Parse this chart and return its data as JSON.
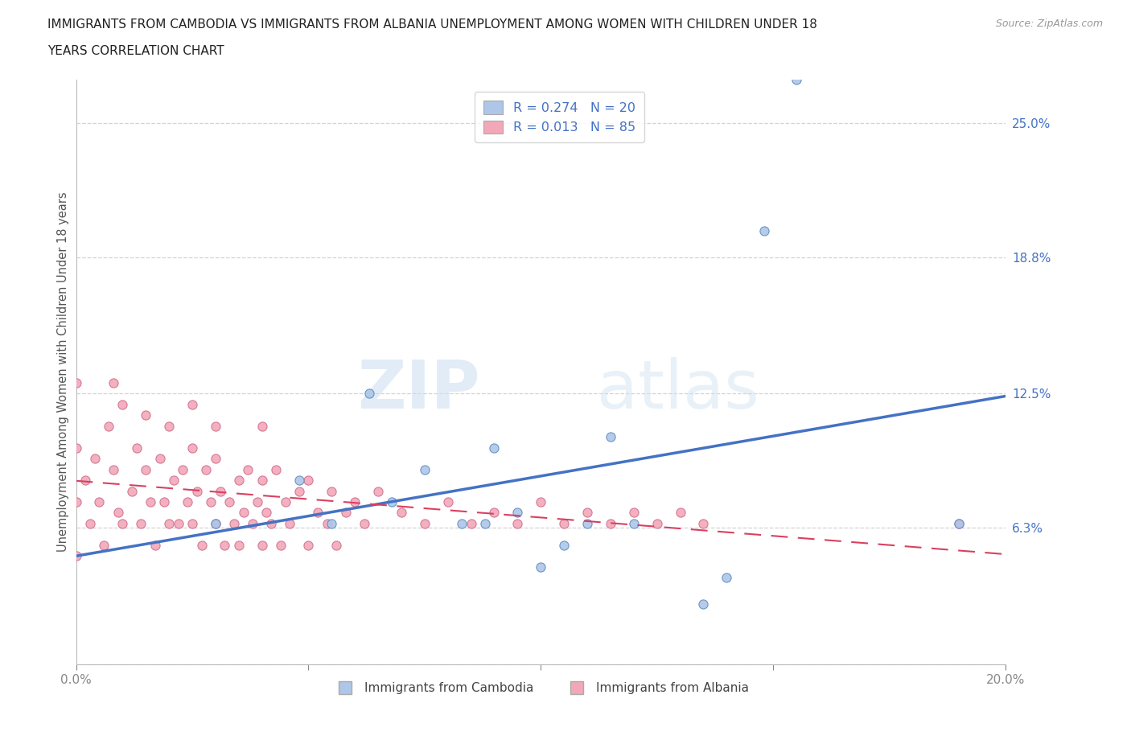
{
  "title_line1": "IMMIGRANTS FROM CAMBODIA VS IMMIGRANTS FROM ALBANIA UNEMPLOYMENT AMONG WOMEN WITH CHILDREN UNDER 18",
  "title_line2": "YEARS CORRELATION CHART",
  "source_text": "Source: ZipAtlas.com",
  "ylabel": "Unemployment Among Women with Children Under 18 years",
  "xlim": [
    0.0,
    0.2
  ],
  "ylim": [
    0.0,
    0.27
  ],
  "yticks": [
    0.0,
    0.063,
    0.125,
    0.188,
    0.25
  ],
  "ytick_labels": [
    "",
    "6.3%",
    "12.5%",
    "18.8%",
    "25.0%"
  ],
  "xticks": [
    0.0,
    0.05,
    0.1,
    0.15,
    0.2
  ],
  "xtick_labels": [
    "0.0%",
    "",
    "",
    "",
    "20.0%"
  ],
  "watermark_zip": "ZIP",
  "watermark_atlas": "atlas",
  "legend_r1": "R = 0.274",
  "legend_n1": "N = 20",
  "legend_r2": "R = 0.013",
  "legend_n2": "N = 85",
  "color_cambodia_fill": "#aec6e8",
  "color_cambodia_edge": "#5b8ec4",
  "color_albania_fill": "#f2a8b8",
  "color_albania_edge": "#d07090",
  "color_trendline_cambodia": "#4472c4",
  "color_trendline_albania": "#d94060",
  "background_color": "#ffffff",
  "grid_color": "#c8c8c8",
  "cambodia_x": [
    0.03,
    0.048,
    0.055,
    0.063,
    0.068,
    0.075,
    0.083,
    0.088,
    0.09,
    0.095,
    0.1,
    0.105,
    0.11,
    0.115,
    0.12,
    0.135,
    0.14,
    0.148,
    0.155,
    0.19
  ],
  "cambodia_y": [
    0.065,
    0.085,
    0.065,
    0.125,
    0.075,
    0.09,
    0.065,
    0.065,
    0.1,
    0.07,
    0.045,
    0.055,
    0.065,
    0.105,
    0.065,
    0.028,
    0.04,
    0.2,
    0.27,
    0.065
  ],
  "albania_x": [
    0.0,
    0.0,
    0.0,
    0.002,
    0.003,
    0.004,
    0.005,
    0.006,
    0.007,
    0.008,
    0.009,
    0.01,
    0.01,
    0.012,
    0.013,
    0.014,
    0.015,
    0.016,
    0.017,
    0.018,
    0.019,
    0.02,
    0.02,
    0.021,
    0.022,
    0.023,
    0.024,
    0.025,
    0.025,
    0.026,
    0.027,
    0.028,
    0.029,
    0.03,
    0.03,
    0.031,
    0.032,
    0.033,
    0.034,
    0.035,
    0.035,
    0.036,
    0.037,
    0.038,
    0.039,
    0.04,
    0.04,
    0.041,
    0.042,
    0.043,
    0.044,
    0.045,
    0.046,
    0.048,
    0.05,
    0.05,
    0.052,
    0.054,
    0.055,
    0.056,
    0.058,
    0.06,
    0.062,
    0.065,
    0.07,
    0.075,
    0.08,
    0.085,
    0.09,
    0.095,
    0.1,
    0.105,
    0.11,
    0.115,
    0.12,
    0.125,
    0.13,
    0.135,
    0.19,
    0.0,
    0.008,
    0.015,
    0.025,
    0.03,
    0.04
  ],
  "albania_y": [
    0.1,
    0.075,
    0.05,
    0.085,
    0.065,
    0.095,
    0.075,
    0.055,
    0.11,
    0.09,
    0.07,
    0.12,
    0.065,
    0.08,
    0.1,
    0.065,
    0.09,
    0.075,
    0.055,
    0.095,
    0.075,
    0.11,
    0.065,
    0.085,
    0.065,
    0.09,
    0.075,
    0.1,
    0.065,
    0.08,
    0.055,
    0.09,
    0.075,
    0.095,
    0.065,
    0.08,
    0.055,
    0.075,
    0.065,
    0.085,
    0.055,
    0.07,
    0.09,
    0.065,
    0.075,
    0.085,
    0.055,
    0.07,
    0.065,
    0.09,
    0.055,
    0.075,
    0.065,
    0.08,
    0.085,
    0.055,
    0.07,
    0.065,
    0.08,
    0.055,
    0.07,
    0.075,
    0.065,
    0.08,
    0.07,
    0.065,
    0.075,
    0.065,
    0.07,
    0.065,
    0.075,
    0.065,
    0.07,
    0.065,
    0.07,
    0.065,
    0.07,
    0.065,
    0.065,
    0.13,
    0.13,
    0.115,
    0.12,
    0.11,
    0.11
  ]
}
